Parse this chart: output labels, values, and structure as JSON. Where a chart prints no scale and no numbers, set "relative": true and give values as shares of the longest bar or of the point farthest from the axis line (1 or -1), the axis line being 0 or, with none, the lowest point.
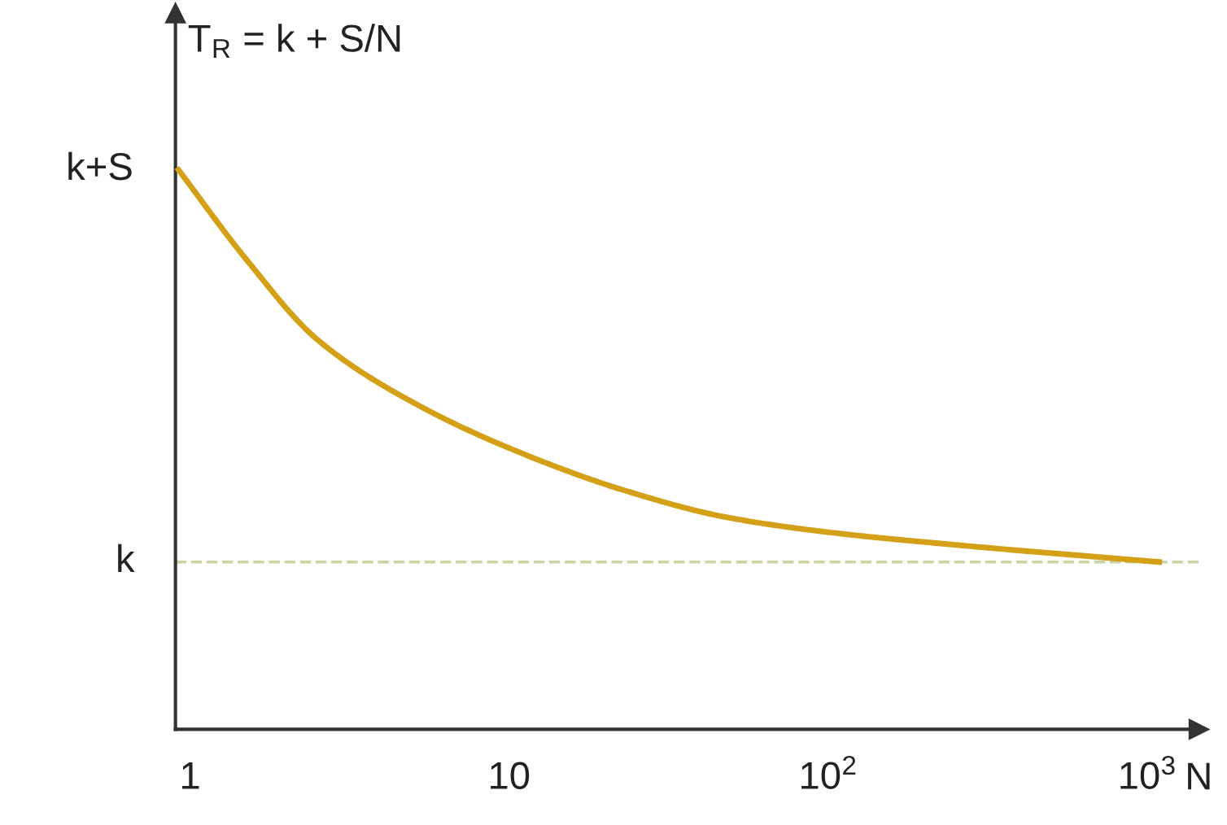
{
  "chart_data": {
    "type": "line",
    "ylabel": "T$_{R}$ = k + S/N",
    "xlabel": "N",
    "relative": true,
    "x": [
      0.92,
      1.5,
      2.5,
      5.2,
      11,
      23,
      48,
      101,
      270,
      1090
    ],
    "series": [
      {
        "color": "#d4a017",
        "values": [
          1,
          0.84,
          0.697,
          0.579,
          0.493,
          0.427,
          0.379,
          0.352,
          0.328,
          0.299
        ]
      }
    ],
    "annotations": [
      {
        "text": "k+S",
        "x": 0.92,
        "y": 1
      }
    ],
    "log": "x",
    "xlim": [
      0.9,
      1450
    ],
    "xticks": [
      1,
      10,
      {
        "value": 100,
        "label": "10$^{2}$"
      },
      {
        "value": 1000,
        "label": "10$^{3}$"
      }
    ],
    "ref_lines": [
      {
        "axis": "y",
        "value": 0.299,
        "label": "k",
        "color": "#c9d5a3",
        "line_style": "dashed"
      }
    ],
    "grid": false,
    "legend": false,
    "marker": "none",
    "line_style": "solid"
  }
}
